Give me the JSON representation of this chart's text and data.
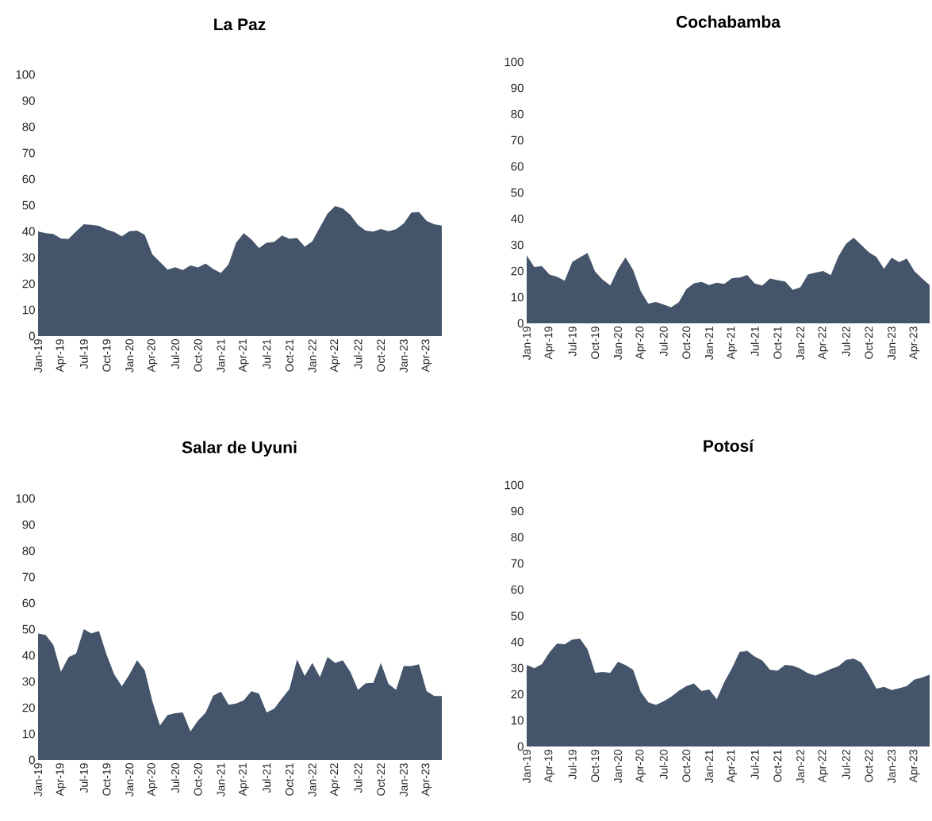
{
  "chart_data": [
    {
      "type": "area",
      "title": "La Paz",
      "color": "#44546a",
      "ylim": [
        0,
        100
      ],
      "yticks": [
        0,
        10,
        20,
        30,
        40,
        50,
        60,
        70,
        80,
        90,
        100
      ],
      "categories": [
        "Jan-19",
        null,
        null,
        "Apr-19",
        null,
        null,
        "Jul-19",
        null,
        null,
        "Oct-19",
        null,
        null,
        "Jan-20",
        null,
        null,
        "Apr-20",
        null,
        null,
        "Jul-20",
        null,
        null,
        "Oct-20",
        null,
        null,
        "Jan-21",
        null,
        null,
        "Apr-21",
        null,
        null,
        "Jul-21",
        null,
        null,
        "Oct-21",
        null,
        null,
        "Jan-22",
        null,
        null,
        "Apr-22",
        null,
        null,
        "Jul-22",
        null,
        null,
        "Oct-22",
        null,
        null,
        "Jan-23",
        null,
        null,
        "Apr-23",
        null,
        null
      ],
      "values": [
        40,
        39.3,
        39,
        37.3,
        37.1,
        40,
        42.7,
        42.5,
        42.1,
        40.7,
        39.8,
        38.1,
        40.1,
        40.3,
        38.7,
        31.2,
        28.3,
        25.4,
        26.3,
        25.2,
        27,
        26.2,
        27.7,
        25.6,
        24.1,
        27.4,
        35.7,
        39.3,
        37,
        33.6,
        35.7,
        36,
        38.4,
        37.2,
        37.5,
        34.2,
        36.2,
        41.6,
        46.8,
        49.7,
        48.8,
        46.3,
        42.4,
        40.3,
        39.9,
        40.9,
        40.1,
        40.8,
        43,
        47.2,
        47.4,
        44,
        42.7,
        42.2
      ]
    },
    {
      "type": "area",
      "title": "Cochabamba",
      "color": "#44546a",
      "ylim": [
        0,
        100
      ],
      "yticks": [
        0,
        10,
        20,
        30,
        40,
        50,
        60,
        70,
        80,
        90,
        100
      ],
      "categories": [
        "Jan-19",
        null,
        null,
        "Apr-19",
        null,
        null,
        "Jul-19",
        null,
        null,
        "Oct-19",
        null,
        null,
        "Jan-20",
        null,
        null,
        "Apr-20",
        null,
        null,
        "Jul-20",
        null,
        null,
        "Oct-20",
        null,
        null,
        "Jan-21",
        null,
        null,
        "Apr-21",
        null,
        null,
        "Jul-21",
        null,
        null,
        "Oct-21",
        null,
        null,
        "Jan-22",
        null,
        null,
        "Apr-22",
        null,
        null,
        "Jul-22",
        null,
        null,
        "Oct-22",
        null,
        null,
        "Jan-23",
        null,
        null,
        "Apr-23",
        null,
        null
      ],
      "values": [
        26,
        21.5,
        21.9,
        18.6,
        17.8,
        16.3,
        23.5,
        25.2,
        26.9,
        19.8,
        16.7,
        14.5,
        20.7,
        25.2,
        20.4,
        12.3,
        7.5,
        8.2,
        7.2,
        6.1,
        8,
        13.1,
        15.3,
        15.8,
        14.6,
        15.5,
        15.1,
        17.3,
        17.5,
        18.5,
        15.2,
        14.5,
        17.1,
        16.5,
        16,
        12.8,
        13.8,
        18.7,
        19.4,
        20,
        18.4,
        25.6,
        30.4,
        32.7,
        30,
        27.2,
        25.4,
        20.8,
        25.1,
        23.4,
        24.8,
        19.9,
        17.2,
        14.6
      ]
    },
    {
      "type": "area",
      "title": "Salar de Uyuni",
      "color": "#44546a",
      "ylim": [
        0,
        100
      ],
      "yticks": [
        0,
        10,
        20,
        30,
        40,
        50,
        60,
        70,
        80,
        90,
        100
      ],
      "categories": [
        "Jan-19",
        null,
        null,
        "Apr-19",
        null,
        null,
        "Jul-19",
        null,
        null,
        "Oct-19",
        null,
        null,
        "Jan-20",
        null,
        null,
        "Apr-20",
        null,
        null,
        "Jul-20",
        null,
        null,
        "Oct-20",
        null,
        null,
        "Jan-21",
        null,
        null,
        "Apr-21",
        null,
        null,
        "Jul-21",
        null,
        null,
        "Oct-21",
        null,
        null,
        "Jan-22",
        null,
        null,
        "Apr-22",
        null,
        null,
        "Jul-22",
        null,
        null,
        "Oct-22",
        null,
        null,
        "Jan-23",
        null,
        null,
        "Apr-23",
        null,
        null
      ],
      "values": [
        48.3,
        47.8,
        44,
        33.7,
        39.3,
        40.7,
        50,
        48.4,
        49.3,
        40.2,
        32.7,
        28.2,
        32.7,
        38.2,
        34.3,
        22.5,
        13.2,
        17.2,
        17.9,
        18.2,
        10.9,
        15.1,
        18.1,
        24.6,
        26.1,
        21.1,
        21.6,
        22.8,
        26.3,
        25.4,
        18.2,
        19.6,
        23.5,
        27.1,
        38.4,
        32.1,
        37.1,
        31.7,
        39.4,
        37.1,
        38.1,
        33.6,
        26.8,
        29.3,
        29.5,
        37.1,
        29.1,
        26.8,
        35.9,
        35.9,
        36.6,
        26.4,
        24.5,
        24.5
      ]
    },
    {
      "type": "area",
      "title": "Potosí",
      "color": "#44546a",
      "ylim": [
        0,
        100
      ],
      "yticks": [
        0,
        10,
        20,
        30,
        40,
        50,
        60,
        70,
        80,
        90,
        100
      ],
      "categories": [
        "Jan-19",
        null,
        null,
        "Apr-19",
        null,
        null,
        "Jul-19",
        null,
        null,
        "Oct-19",
        null,
        null,
        "Jan-20",
        null,
        null,
        "Apr-20",
        null,
        null,
        "Jul-20",
        null,
        null,
        "Oct-20",
        null,
        null,
        "Jan-21",
        null,
        null,
        "Apr-21",
        null,
        null,
        "Jul-21",
        null,
        null,
        "Oct-21",
        null,
        null,
        "Jan-22",
        null,
        null,
        "Apr-22",
        null,
        null,
        "Jul-22",
        null,
        null,
        "Oct-22",
        null,
        null,
        "Jan-23",
        null,
        null,
        "Apr-23",
        null,
        null
      ],
      "values": [
        31.2,
        29.9,
        31.5,
        36,
        39.4,
        39.1,
        40.9,
        41.3,
        37.2,
        28.2,
        28.5,
        28.2,
        32.4,
        31.1,
        29.3,
        20.9,
        16.9,
        15.9,
        17.3,
        19,
        21.3,
        23.1,
        24.1,
        21.2,
        21.8,
        18.1,
        24.7,
        29.9,
        36.1,
        36.6,
        34.4,
        32.9,
        29.3,
        29,
        31.2,
        30.9,
        29.8,
        28,
        27.1,
        28.3,
        29.6,
        30.7,
        33.1,
        33.6,
        32.1,
        27.5,
        22.1,
        22.8,
        21.6,
        22.3,
        23.1,
        25.6,
        26.4,
        27.5
      ]
    }
  ]
}
